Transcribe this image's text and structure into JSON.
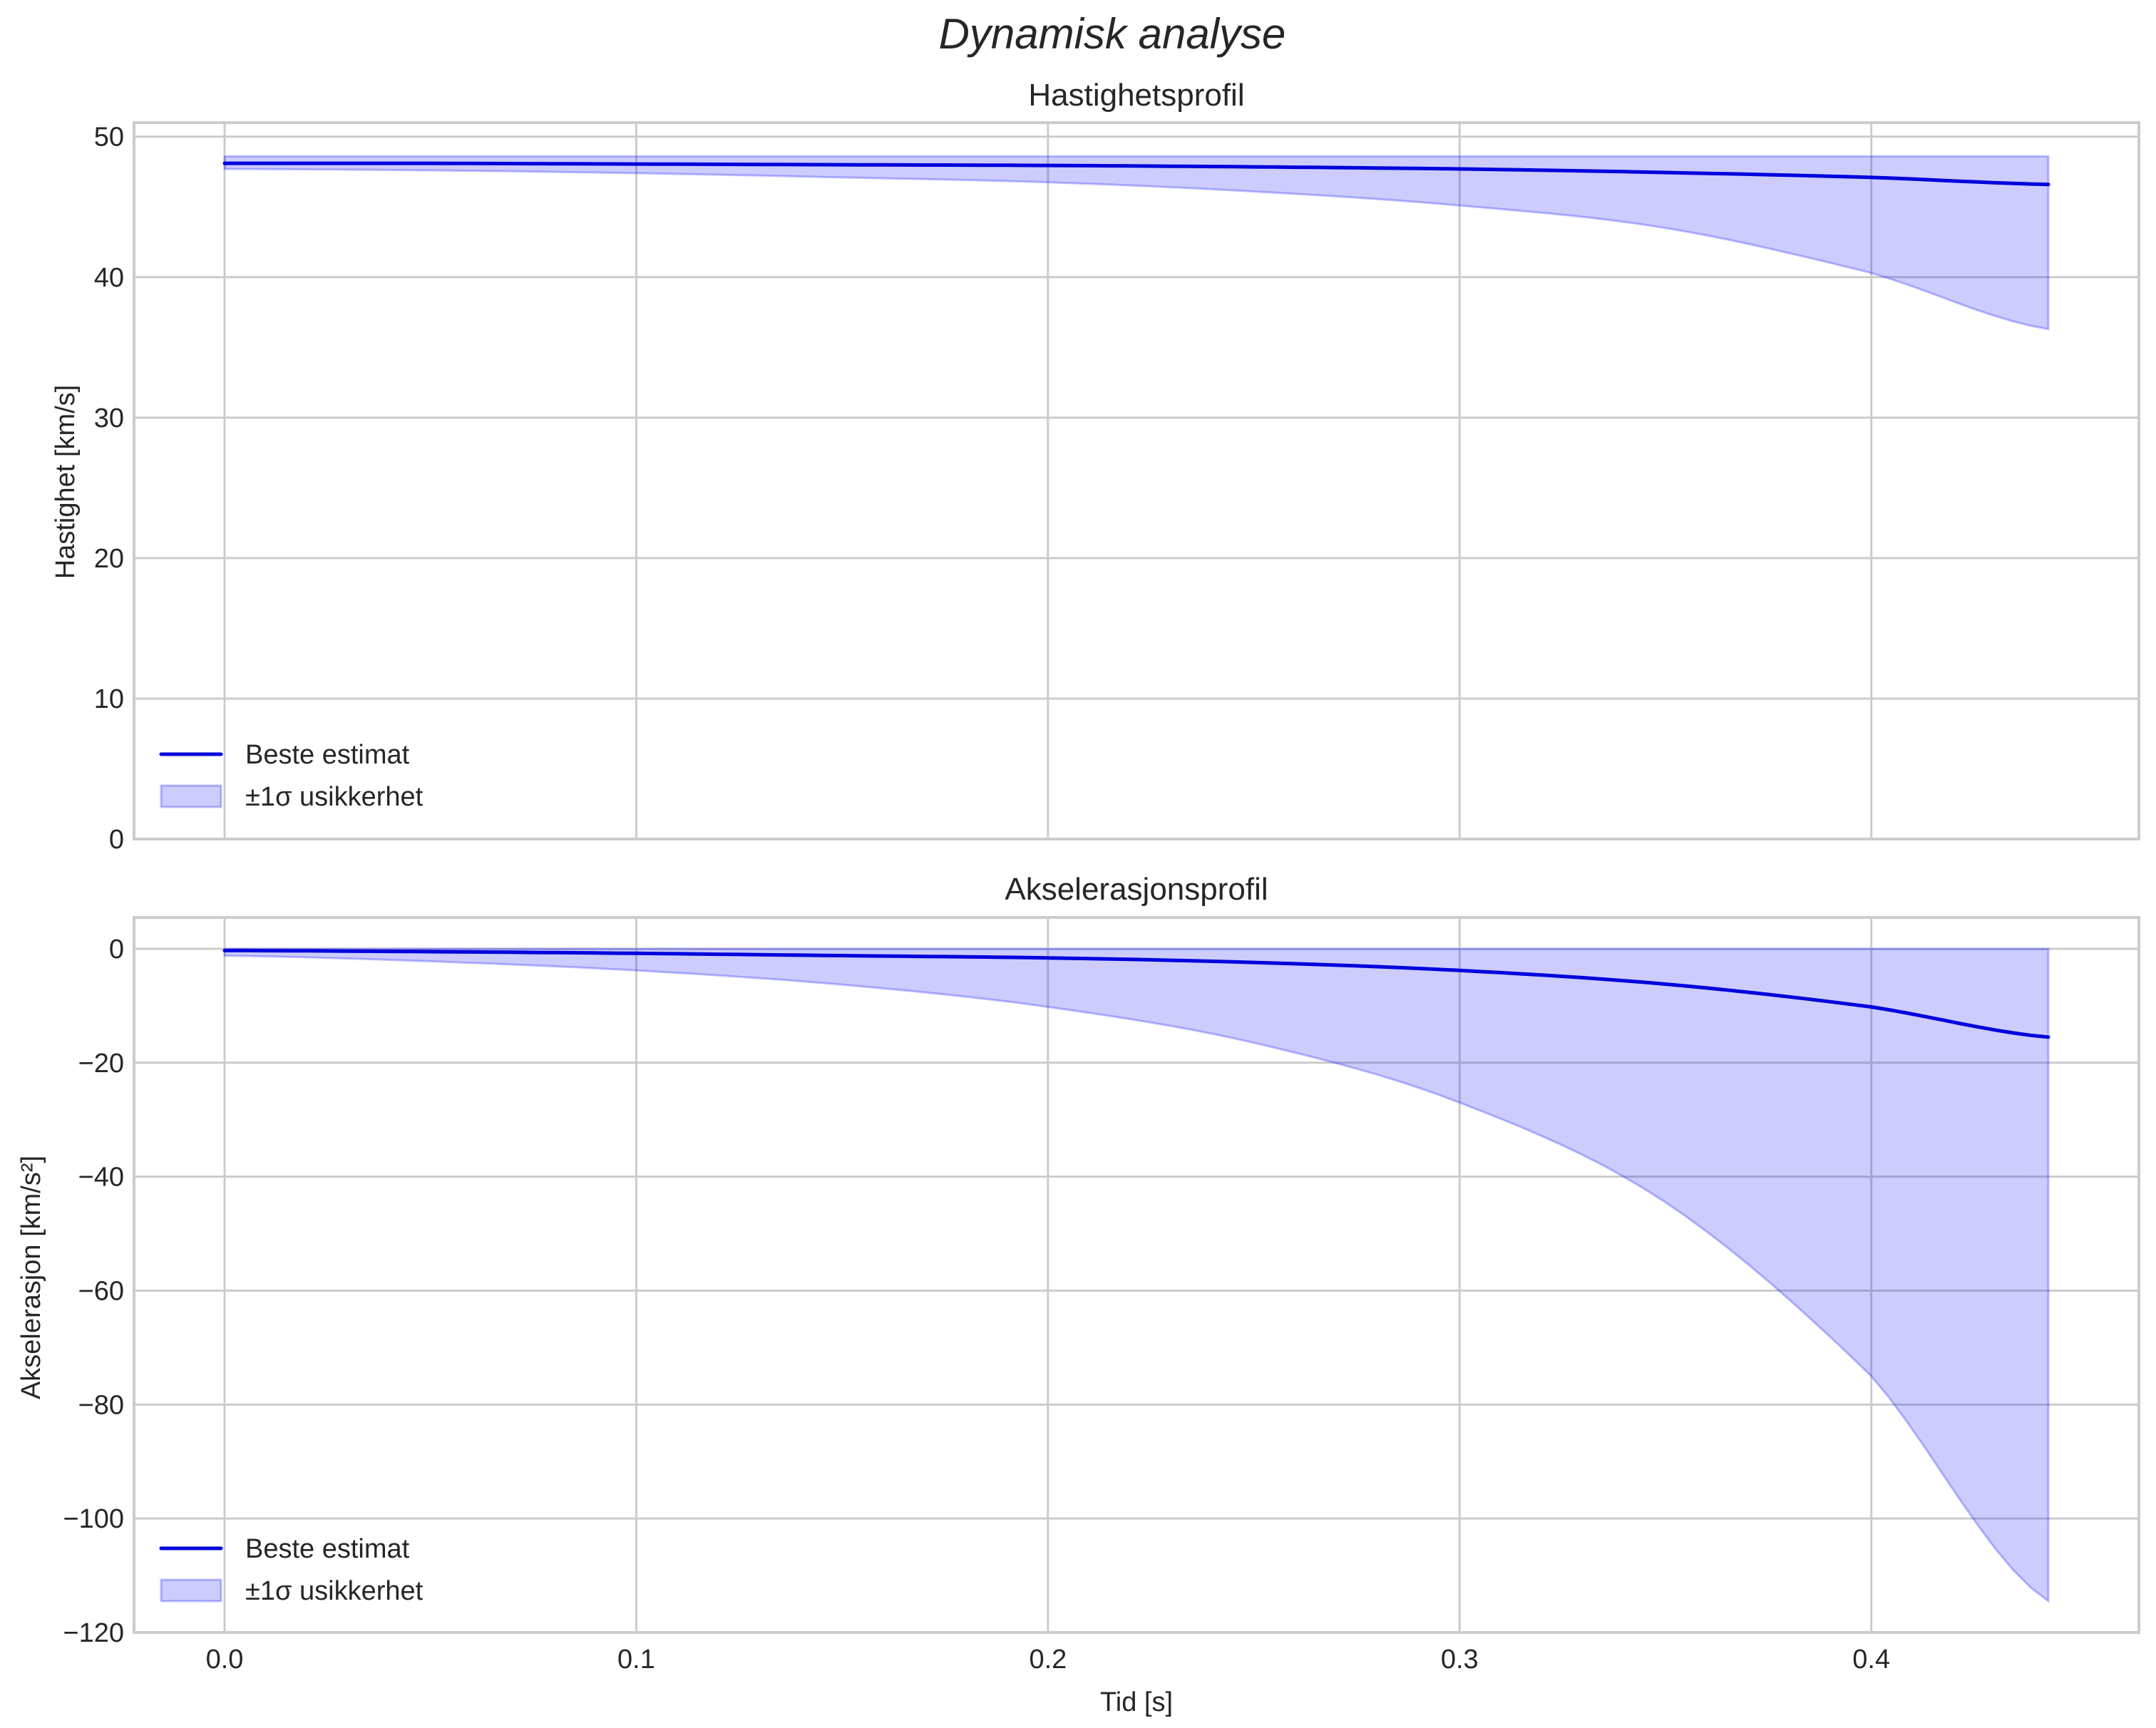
{
  "figure": {
    "suptitle": "Dynamisk analyse"
  },
  "colors": {
    "line": "#0000dd",
    "band_fill": "#0000ff",
    "band_alpha": 0.2,
    "grid": "#cccccc",
    "spine": "#cccccc",
    "text": "#262626"
  },
  "chart_data": [
    {
      "type": "line",
      "title": "Hastighetsprofil",
      "xlabel": "",
      "ylabel": "Hastighet [km/s]",
      "xlim": [
        -0.022,
        0.465
      ],
      "ylim": [
        0,
        51
      ],
      "grid": true,
      "legend_position": "lower left",
      "x_ticks": [
        "0.0",
        "0.1",
        "0.2",
        "0.3",
        "0.4"
      ],
      "y_ticks": [
        "0",
        "10",
        "20",
        "30",
        "40",
        "50"
      ],
      "legend": [
        "Beste estimat",
        "±1σ usikkerhet"
      ],
      "x": [
        0.0,
        0.05,
        0.1,
        0.15,
        0.2,
        0.25,
        0.3,
        0.35,
        0.4,
        0.443
      ],
      "series": [
        {
          "name": "Beste estimat",
          "kind": "line",
          "values": [
            48.1,
            48.1,
            48.05,
            48.0,
            47.95,
            47.85,
            47.7,
            47.45,
            47.1,
            46.6
          ]
        },
        {
          "name": "±1σ usikkerhet (upper)",
          "kind": "band_upper",
          "values": [
            48.6,
            48.6,
            48.6,
            48.6,
            48.6,
            48.6,
            48.6,
            48.6,
            48.6,
            48.6
          ]
        },
        {
          "name": "±1σ usikkerhet (lower)",
          "kind": "band_lower",
          "values": [
            47.7,
            47.6,
            47.4,
            47.1,
            46.75,
            46.1,
            45.1,
            43.5,
            40.3,
            36.3
          ]
        }
      ]
    },
    {
      "type": "line",
      "title": "Akselerasjonsprofil",
      "xlabel": "Tid [s]",
      "ylabel": "Akselerasjon [km/s²]",
      "xlim": [
        -0.022,
        0.465
      ],
      "ylim": [
        -120,
        5.5
      ],
      "grid": true,
      "legend_position": "lower left",
      "x_ticks": [
        "0.0",
        "0.1",
        "0.2",
        "0.3",
        "0.4"
      ],
      "y_ticks": [
        "0",
        "−20",
        "−40",
        "−60",
        "−80",
        "−100",
        "−120"
      ],
      "legend": [
        "Beste estimat",
        "±1σ usikkerhet"
      ],
      "x": [
        0.0,
        0.05,
        0.1,
        0.15,
        0.2,
        0.25,
        0.3,
        0.35,
        0.4,
        0.443
      ],
      "series": [
        {
          "name": "Beste estimat",
          "kind": "line",
          "values": [
            -0.3,
            -0.5,
            -0.8,
            -1.2,
            -1.6,
            -2.4,
            -3.8,
            -6.2,
            -10.2,
            -15.5
          ]
        },
        {
          "name": "±1σ usikkerhet (upper)",
          "kind": "band_upper",
          "values": [
            0,
            0,
            0,
            0,
            0,
            0,
            0,
            0,
            0,
            0
          ]
        },
        {
          "name": "±1σ usikkerhet (lower)",
          "kind": "band_lower",
          "values": [
            -1.2,
            -2.2,
            -3.8,
            -6.3,
            -10.2,
            -16.5,
            -27.0,
            -44.5,
            -75.0,
            -114.5
          ]
        }
      ]
    }
  ]
}
